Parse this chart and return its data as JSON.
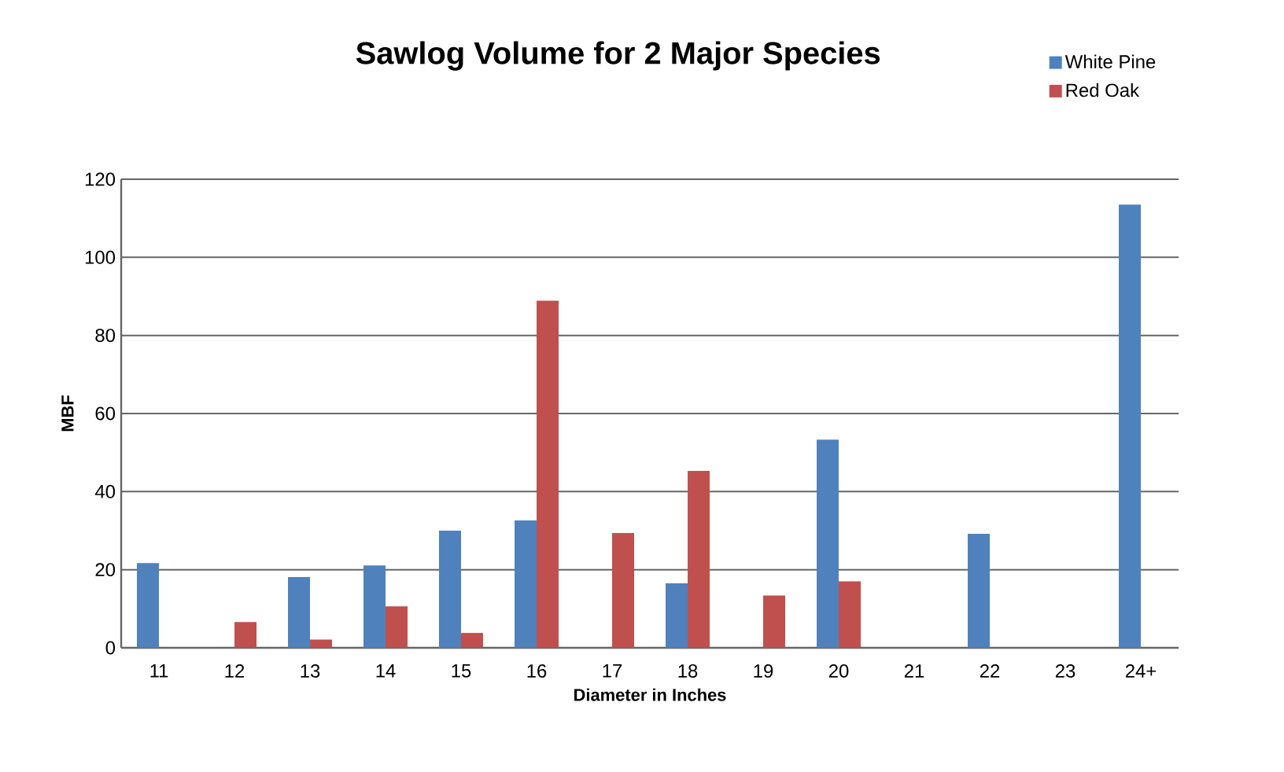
{
  "chart_data": {
    "type": "bar",
    "title": "Sawlog Volume for 2 Major Species",
    "xlabel": "Diameter in Inches",
    "ylabel": "MBF",
    "categories": [
      "11",
      "12",
      "13",
      "14",
      "15",
      "16",
      "17",
      "18",
      "19",
      "20",
      "21",
      "22",
      "23",
      "24+"
    ],
    "series": [
      {
        "name": "White Pine",
        "color": "#4f81bd",
        "values": [
          21.7,
          0,
          18.1,
          21.1,
          30.0,
          32.6,
          0,
          16.5,
          0,
          53.3,
          0,
          29.2,
          0,
          113.5
        ]
      },
      {
        "name": "Red Oak",
        "color": "#c0504d",
        "values": [
          0,
          6.6,
          2.1,
          10.6,
          3.8,
          88.9,
          29.4,
          45.3,
          13.4,
          17.0,
          0,
          0,
          0,
          0
        ]
      }
    ],
    "ylim": [
      0,
      120
    ],
    "yticks": [
      0,
      20,
      40,
      60,
      80,
      100,
      120
    ],
    "grid": "y",
    "legend": "top right"
  }
}
